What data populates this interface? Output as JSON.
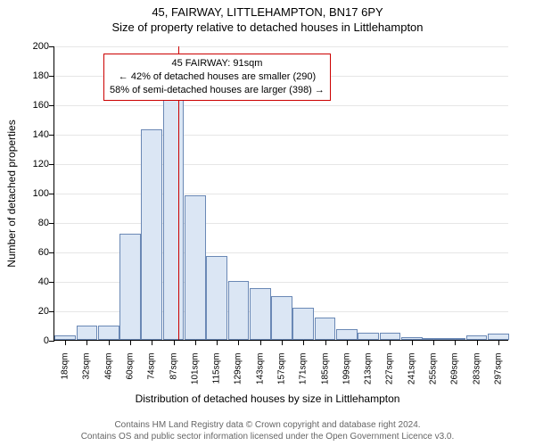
{
  "title_line1": "45, FAIRWAY, LITTLEHAMPTON, BN17 6PY",
  "title_line2": "Size of property relative to detached houses in Littlehampton",
  "yaxis_label": "Number of detached properties",
  "xaxis_title": "Distribution of detached houses by size in Littlehampton",
  "chart": {
    "type": "histogram",
    "ylim": [
      0,
      200
    ],
    "ytick_step": 20,
    "yticks": [
      0,
      20,
      40,
      60,
      80,
      100,
      120,
      140,
      160,
      180,
      200
    ],
    "grid_color": "#e6e6e6",
    "axis_color": "#000000",
    "bar_fill": "#dbe6f4",
    "bar_stroke": "#6a88b5",
    "marker_color": "#cc0000",
    "marker_x_value": 91,
    "x_start": 18,
    "x_step": 14,
    "x_labels": [
      "18sqm",
      "32sqm",
      "46sqm",
      "60sqm",
      "74sqm",
      "87sqm",
      "101sqm",
      "115sqm",
      "129sqm",
      "143sqm",
      "157sqm",
      "171sqm",
      "185sqm",
      "199sqm",
      "213sqm",
      "227sqm",
      "241sqm",
      "255sqm",
      "269sqm",
      "283sqm",
      "297sqm"
    ],
    "values": [
      3,
      10,
      10,
      72,
      143,
      170,
      98,
      57,
      40,
      35,
      30,
      22,
      15,
      7,
      5,
      5,
      2,
      0,
      0,
      3,
      4
    ],
    "bar_count": 21
  },
  "info_box": {
    "line1": "45 FAIRWAY: 91sqm",
    "line2": "← 42% of detached houses are smaller (290)",
    "line3": "58% of semi-detached houses are larger (398) →",
    "border_color": "#cc0000"
  },
  "footer": {
    "line1": "Contains HM Land Registry data © Crown copyright and database right 2024.",
    "line2": "Contains OS and public sector information licensed under the Open Government Licence v3.0."
  }
}
